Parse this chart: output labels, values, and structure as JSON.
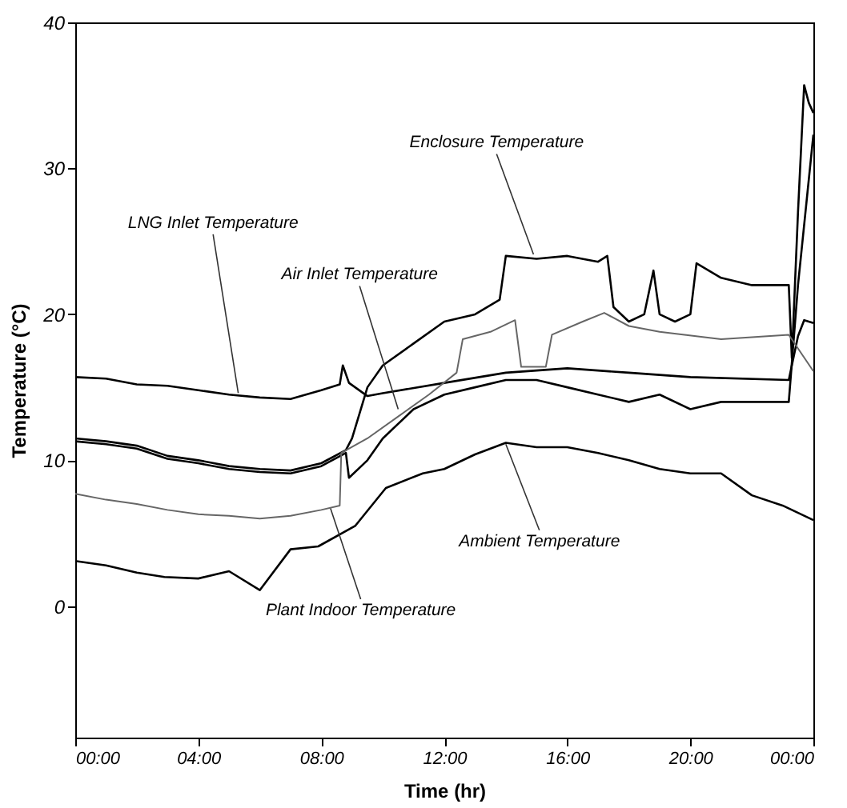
{
  "chart_data": {
    "type": "line",
    "xlabel": "Time (hr)",
    "ylabel": "Temperature (°C)",
    "xlim": [
      0,
      24
    ],
    "ylim": [
      -9,
      40
    ],
    "xticks": [
      {
        "value": 0,
        "label": "00:00"
      },
      {
        "value": 4,
        "label": "04:00"
      },
      {
        "value": 8,
        "label": "08:00"
      },
      {
        "value": 12,
        "label": "12:00"
      },
      {
        "value": 16,
        "label": "16:00"
      },
      {
        "value": 20,
        "label": "20:00"
      },
      {
        "value": 24,
        "label": "00:00"
      }
    ],
    "yticks": [
      0,
      10,
      20,
      30,
      40
    ],
    "grid": false,
    "marker": "none",
    "line_style": "solid",
    "series": [
      {
        "color": "#000000",
        "x": [
          0,
          1,
          2,
          3,
          4,
          5,
          6,
          7,
          8,
          8.6,
          8.7,
          8.9,
          9.5,
          10,
          12,
          14,
          16,
          18,
          20,
          23.2,
          23.5,
          23.7,
          24
        ],
        "values": [
          15.7,
          15.6,
          15.2,
          15.1,
          14.8,
          14.5,
          14.3,
          14.2,
          14.8,
          15.2,
          16.5,
          15.3,
          14.4,
          14.6,
          15.3,
          16.0,
          16.3,
          16.0,
          15.7,
          15.5,
          18.5,
          19.6,
          19.4
        ]
      },
      {
        "color": "#000000",
        "x": [
          0,
          1,
          2,
          3,
          4,
          5,
          6,
          7,
          8,
          8.8,
          9.0,
          9.5,
          10,
          11,
          12,
          13,
          13.8,
          14,
          15,
          16,
          17,
          17.3,
          17.5,
          18,
          18.5,
          18.8,
          19,
          19.5,
          20,
          20.2,
          21,
          22,
          23.2,
          23.3,
          23.5,
          23.7,
          23.85,
          24
        ],
        "values": [
          11.5,
          11.3,
          11.0,
          10.3,
          10.0,
          9.6,
          9.4,
          9.3,
          9.8,
          10.7,
          11.5,
          15.0,
          16.5,
          18.0,
          19.5,
          20.0,
          21.0,
          24.0,
          23.8,
          24.0,
          23.6,
          24.0,
          20.5,
          19.5,
          20.0,
          23.0,
          20.0,
          19.5,
          20.0,
          23.5,
          22.5,
          22.0,
          22.0,
          17.0,
          27.0,
          35.7,
          34.5,
          33.8
        ]
      },
      {
        "color": "#000000",
        "x": [
          0,
          1,
          2,
          3,
          4,
          5,
          6,
          7,
          8,
          8.8,
          8.9,
          9.5,
          10,
          11,
          12,
          13,
          14,
          15,
          16,
          17,
          18,
          19,
          20,
          21,
          22,
          23.2,
          23.5,
          24
        ],
        "values": [
          11.3,
          11.1,
          10.8,
          10.1,
          9.8,
          9.4,
          9.2,
          9.1,
          9.6,
          10.5,
          8.8,
          10.0,
          11.5,
          13.5,
          14.5,
          15.0,
          15.5,
          15.5,
          15.0,
          14.5,
          14.0,
          14.5,
          13.5,
          14.0,
          14.0,
          14.0,
          22.0,
          32.3
        ]
      },
      {
        "color": "#666666",
        "x": [
          0,
          1,
          2,
          3,
          4,
          5,
          6,
          7,
          8,
          8.6,
          8.65,
          9.5,
          10.5,
          11.5,
          12.4,
          12.6,
          13.5,
          14.3,
          14.5,
          15.3,
          15.5,
          16.5,
          17.2,
          18,
          19,
          21,
          23.2,
          24
        ],
        "values": [
          7.7,
          7.3,
          7.0,
          6.6,
          6.3,
          6.2,
          6.0,
          6.2,
          6.6,
          6.9,
          10.5,
          11.5,
          13.0,
          14.5,
          16.0,
          18.3,
          18.8,
          19.6,
          16.4,
          16.4,
          18.6,
          19.5,
          20.1,
          19.2,
          18.8,
          18.3,
          18.6,
          16.1
        ]
      },
      {
        "color": "#000000",
        "x": [
          0,
          1,
          2,
          2.9,
          4,
          5,
          6,
          7,
          7.9,
          9.1,
          10.1,
          11.3,
          12,
          13,
          14,
          15,
          16,
          17,
          18,
          19,
          20,
          21,
          22,
          23,
          24
        ],
        "values": [
          3.1,
          2.8,
          2.3,
          2.0,
          1.9,
          2.4,
          1.1,
          3.9,
          4.1,
          5.5,
          8.1,
          9.1,
          9.4,
          10.4,
          11.2,
          10.9,
          10.9,
          10.5,
          10.0,
          9.4,
          9.1,
          9.1,
          7.6,
          6.9,
          5.9
        ]
      }
    ],
    "annotations": [
      {
        "text": "LNG Inlet Temperature",
        "x": 5.3,
        "y": 14.6
      },
      {
        "text": "Enclosure Temperature",
        "x": 14.9,
        "y": 24.1
      },
      {
        "text": "Air Inlet Temperature",
        "x": 10.5,
        "y": 13.5
      },
      {
        "text": "Plant Indoor Temperature",
        "x": 8.3,
        "y": 6.7
      },
      {
        "text": "Ambient Temperature",
        "x": 14.0,
        "y": 11.1
      }
    ]
  }
}
